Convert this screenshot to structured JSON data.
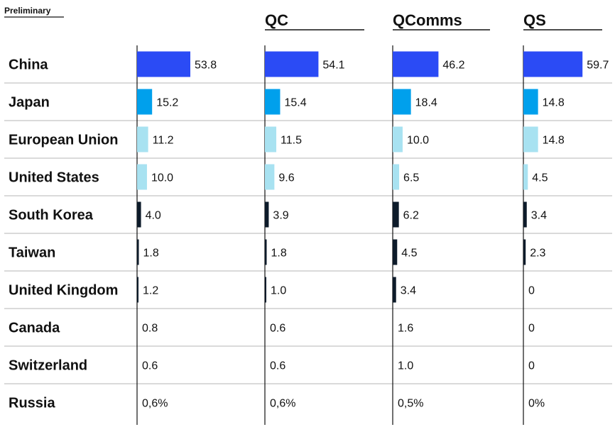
{
  "note": "Preliminary",
  "chart_data": {
    "type": "bar",
    "orientation": "horizontal",
    "categories": [
      "China",
      "Japan",
      "European Union",
      "United States",
      "South Korea",
      "Taiwan",
      "United Kingdom",
      "Canada",
      "Switzerland",
      "Russia"
    ],
    "series": [
      {
        "name": "",
        "values": [
          53.8,
          15.2,
          11.2,
          10.0,
          4.0,
          1.8,
          1.2,
          0.8,
          0.6,
          0.6
        ],
        "labels": [
          "53.8",
          "15.2",
          "11.2",
          "10.0",
          "4.0",
          "1.8",
          "1.2",
          "0.8",
          "0.6",
          "0,6%"
        ]
      },
      {
        "name": "QC",
        "values": [
          54.1,
          15.4,
          11.5,
          9.6,
          3.9,
          1.8,
          1.0,
          0.6,
          0.6,
          0.6
        ],
        "labels": [
          "54.1",
          "15.4",
          "11.5",
          "9.6",
          "3.9",
          "1.8",
          "1.0",
          "0.6",
          "0.6",
          "0,6%"
        ]
      },
      {
        "name": "QComms",
        "values": [
          46.2,
          18.4,
          10.0,
          6.5,
          6.2,
          4.5,
          3.4,
          1.6,
          1.0,
          0.5
        ],
        "labels": [
          "46.2",
          "18.4",
          "10.0",
          "6.5",
          "6.2",
          "4.5",
          "3.4",
          "1.6",
          "1.0",
          "0,5%"
        ]
      },
      {
        "name": "QS",
        "values": [
          59.7,
          14.8,
          14.8,
          4.5,
          3.4,
          2.3,
          0,
          0,
          0,
          0
        ],
        "labels": [
          "59.7",
          "14.8",
          "14.8",
          "4.5",
          "3.4",
          "2.3",
          "0",
          "0",
          "0",
          "0%"
        ]
      }
    ],
    "colors": [
      "#2b4bf5",
      "#00a0ec",
      "#a8e2f1",
      "#a8e2f1",
      "#0d1b2a",
      "#0d1b2a",
      "#0d1b2a",
      "#0d1b2a",
      "#0d1b2a",
      "#0d1b2a"
    ],
    "xlim": [
      0,
      60
    ],
    "grid": false,
    "legend": "none"
  }
}
